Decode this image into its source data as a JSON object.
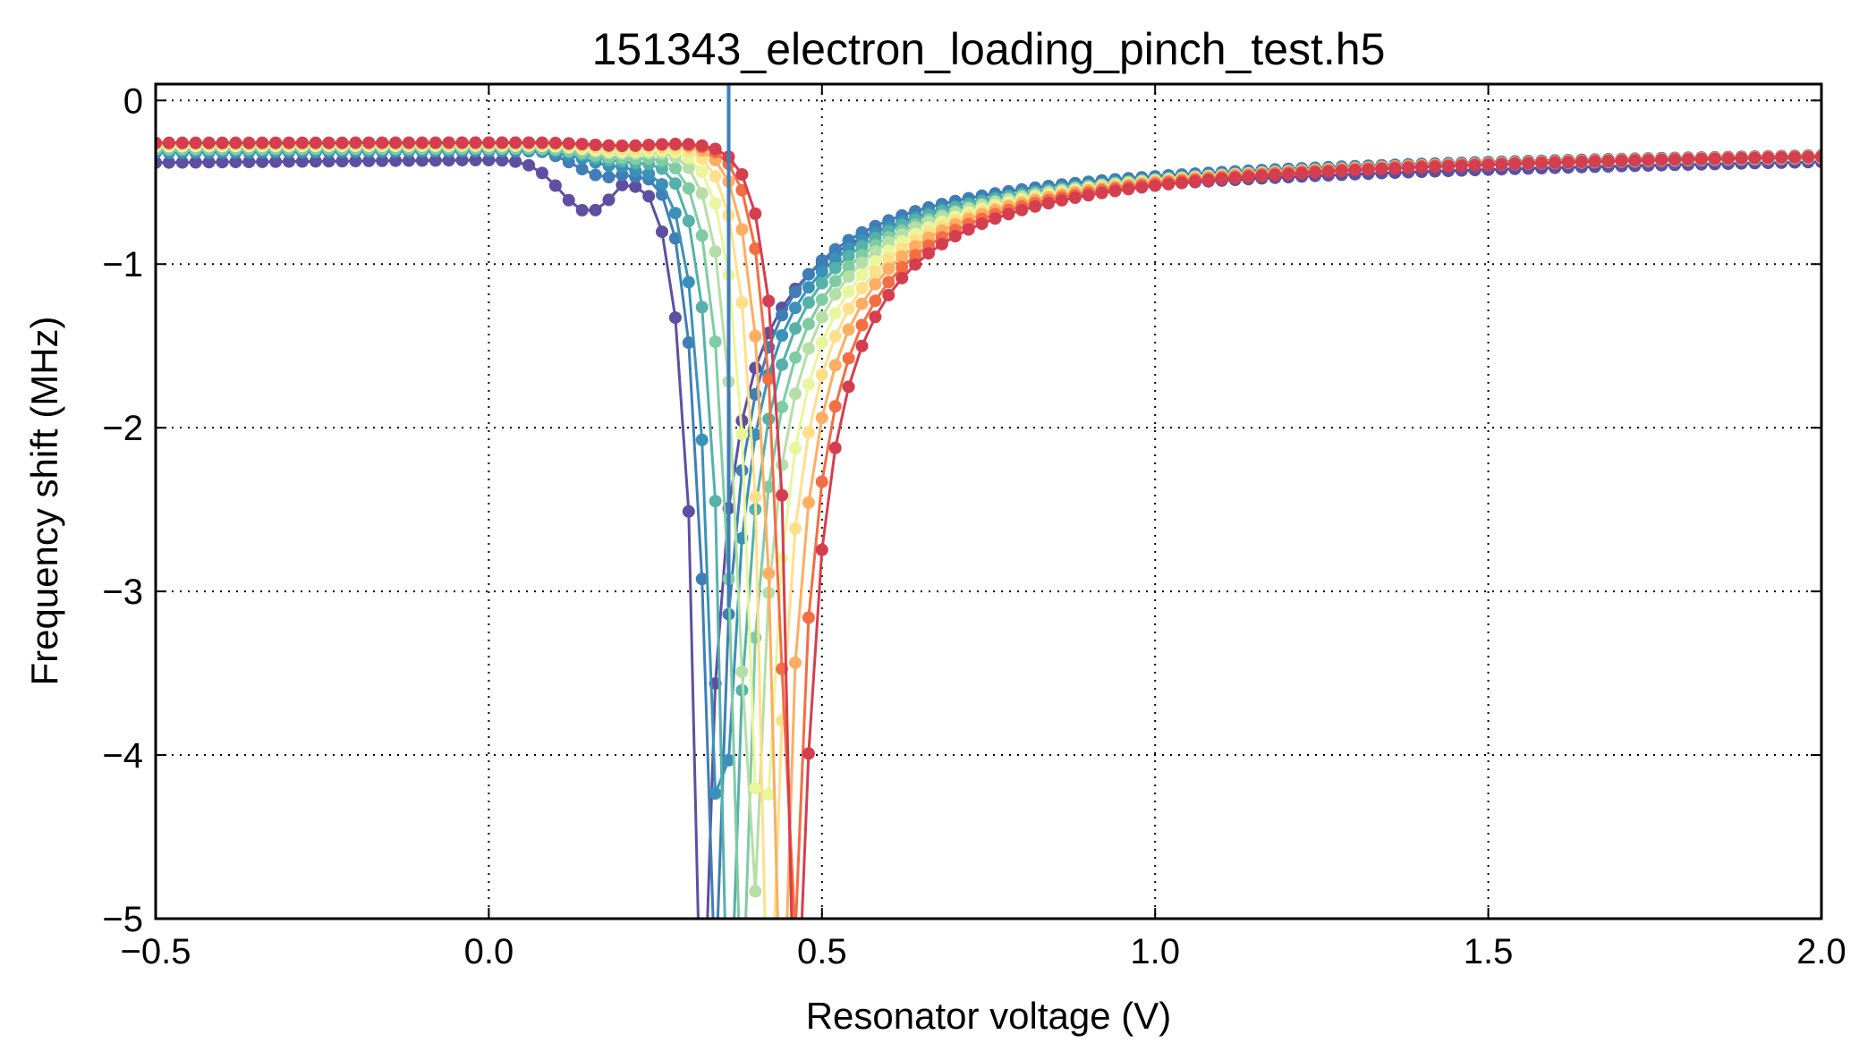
{
  "chart_data": {
    "type": "line",
    "title": "151343_electron_loading_pinch_test.h5",
    "xlabel": "Resonator voltage (V)",
    "ylabel": "Frequency shift (MHz)",
    "xlim": [
      -0.5,
      2.0
    ],
    "ylim": [
      -5,
      0.1
    ],
    "xticks": [
      -0.5,
      0.0,
      0.5,
      1.0,
      1.5,
      2.0
    ],
    "xtick_labels": [
      "−0.5",
      "0.0",
      "0.5",
      "1.0",
      "1.5",
      "2.0"
    ],
    "yticks": [
      0,
      -1,
      -2,
      -3,
      -4,
      -5
    ],
    "ytick_labels": [
      "0",
      "−1",
      "−2",
      "−3",
      "−4",
      "−5"
    ],
    "grid": true,
    "grid_style": "dotted",
    "legend": "none",
    "marker": "circle",
    "series": [
      {
        "color": "#5e4fa2",
        "v0": 0.32,
        "a": 1.2,
        "base_start": -0.38,
        "base_end": -0.3,
        "bump": [
          0.15,
          -0.32,
          0.06
        ]
      },
      {
        "color": "#3f7eb6",
        "v0": 0.335,
        "a": 1.2,
        "base_start": -0.3,
        "base_end": -0.26,
        "bump": [
          0.18,
          -0.18,
          0.07
        ]
      },
      {
        "color": "#3b92b8",
        "v0": 0.345,
        "a": 1.25,
        "base_start": -0.32,
        "base_end": -0.27,
        "bump": [
          0.2,
          -0.1,
          0.07
        ]
      },
      {
        "color": "#55b1a9",
        "v0": 0.36,
        "a": 1.3,
        "base_start": -0.3,
        "base_end": -0.27,
        "bump": [
          0.2,
          -0.08,
          0.07
        ]
      },
      {
        "color": "#7fcca4",
        "v0": 0.375,
        "a": 1.35,
        "base_start": -0.3,
        "base_end": -0.27,
        "bump": [
          0.2,
          -0.06,
          0.07
        ]
      },
      {
        "color": "#b5dfa6",
        "v0": 0.39,
        "a": 1.4,
        "base_start": -0.28,
        "base_end": -0.26,
        "bump": [
          0.2,
          -0.05,
          0.07
        ]
      },
      {
        "color": "#e8f69c",
        "v0": 0.405,
        "a": 1.45,
        "base_start": -0.28,
        "base_end": -0.26,
        "bump": [
          0.2,
          -0.04,
          0.07
        ]
      },
      {
        "color": "#fee08b",
        "v0": 0.42,
        "a": 1.5,
        "base_start": -0.27,
        "base_end": -0.26,
        "bump": [
          0.2,
          -0.03,
          0.07
        ]
      },
      {
        "color": "#fdae61",
        "v0": 0.435,
        "a": 1.55,
        "base_start": -0.26,
        "base_end": -0.25,
        "bump": [
          0.2,
          -0.02,
          0.07
        ]
      },
      {
        "color": "#f46d43",
        "v0": 0.45,
        "a": 1.6,
        "base_start": -0.26,
        "base_end": -0.25,
        "bump": [
          0.2,
          -0.02,
          0.07
        ]
      },
      {
        "color": "#d53e4f",
        "v0": 0.46,
        "a": 1.7,
        "base_start": -0.26,
        "base_end": -0.25,
        "bump": [
          0.2,
          -0.02,
          0.07
        ]
      }
    ],
    "spike": {
      "color": "#3f7eb6",
      "x": 0.36
    }
  }
}
